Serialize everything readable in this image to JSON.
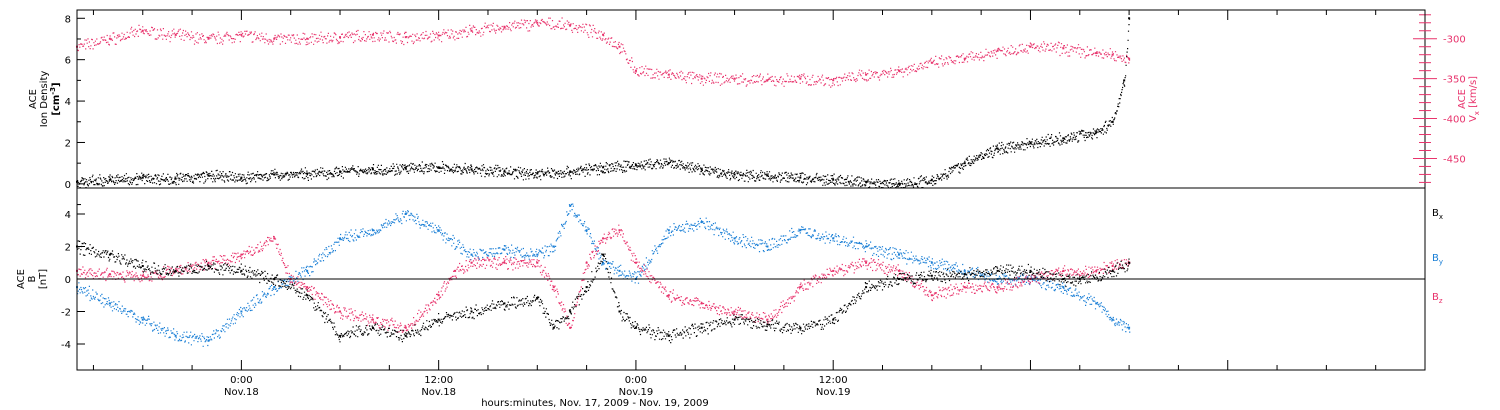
{
  "colors": {
    "density": "#000000",
    "velocity": "#e8336c",
    "bx": "#000000",
    "by": "#1a7fd6",
    "bz": "#e8336c"
  },
  "chart_data": [
    {
      "type": "scatter",
      "panel": "top",
      "ylabel": "ACE Ion Density [cm-3]",
      "ylabel_parts": {
        "line1": "ACE",
        "line2": "Ion Density",
        "unit_prefix": "[cm",
        "unit_sup": "-3",
        "unit_suffix": "]"
      },
      "ylim": [
        -0.2,
        8.4
      ],
      "yticks": [
        0,
        2,
        4,
        6,
        8
      ],
      "y2label": "ACE Vx [km/s]",
      "y2label_parts": {
        "line1": "ACE",
        "var": "V",
        "sub": "x",
        "unit": "[km/s]"
      },
      "y2lim": [
        -487,
        -264
      ],
      "y2ticks": [
        -300,
        -350,
        -400,
        -450
      ],
      "series": [
        {
          "key": "density",
          "points": [
            [
              -10,
              0.1
            ],
            [
              -8,
              0.2
            ],
            [
              -6,
              0.3
            ],
            [
              -4,
              0.25
            ],
            [
              -2,
              0.4
            ],
            [
              0,
              0.3
            ],
            [
              2,
              0.45
            ],
            [
              4,
              0.5
            ],
            [
              6,
              0.6
            ],
            [
              8,
              0.7
            ],
            [
              10,
              0.75
            ],
            [
              12,
              0.8
            ],
            [
              14,
              0.7
            ],
            [
              16,
              0.6
            ],
            [
              18,
              0.5
            ],
            [
              20,
              0.6
            ],
            [
              22,
              0.8
            ],
            [
              24,
              0.9
            ],
            [
              26,
              1.0
            ],
            [
              28,
              0.7
            ],
            [
              30,
              0.45
            ],
            [
              32,
              0.4
            ],
            [
              34,
              0.3
            ],
            [
              36,
              0.2
            ],
            [
              38,
              0.1
            ],
            [
              40,
              0.0
            ],
            [
              42,
              0.2
            ],
            [
              44,
              1.0
            ],
            [
              46,
              1.7
            ],
            [
              48,
              2.0
            ],
            [
              50,
              2.2
            ],
            [
              52,
              2.5
            ],
            [
              53,
              3.0
            ],
            [
              53.7,
              5.0
            ],
            [
              54,
              8.0
            ]
          ]
        },
        {
          "key": "velocity",
          "points": [
            [
              -10,
              -310
            ],
            [
              -8,
              -300
            ],
            [
              -6,
              -290
            ],
            [
              -4,
              -295
            ],
            [
              -2,
              -300
            ],
            [
              0,
              -295
            ],
            [
              2,
              -300
            ],
            [
              4,
              -300
            ],
            [
              6,
              -298
            ],
            [
              8,
              -295
            ],
            [
              10,
              -298
            ],
            [
              12,
              -296
            ],
            [
              14,
              -290
            ],
            [
              16,
              -285
            ],
            [
              18,
              -280
            ],
            [
              20,
              -283
            ],
            [
              22,
              -295
            ],
            [
              23,
              -310
            ],
            [
              24,
              -340
            ],
            [
              26,
              -345
            ],
            [
              28,
              -350
            ],
            [
              30,
              -350
            ],
            [
              32,
              -352
            ],
            [
              34,
              -350
            ],
            [
              36,
              -352
            ],
            [
              38,
              -345
            ],
            [
              40,
              -340
            ],
            [
              42,
              -330
            ],
            [
              44,
              -325
            ],
            [
              46,
              -315
            ],
            [
              48,
              -310
            ],
            [
              50,
              -312
            ],
            [
              52,
              -318
            ],
            [
              53,
              -320
            ],
            [
              54,
              -325
            ]
          ]
        }
      ]
    },
    {
      "type": "scatter",
      "panel": "bottom",
      "ylabel": "ACE B [nT]",
      "ylabel_parts": {
        "line1": "ACE",
        "var": "B",
        "unit": "[nT]"
      },
      "ylim": [
        -5.6,
        5.6
      ],
      "yticks": [
        -4,
        -2,
        0,
        2,
        4
      ],
      "xlabel": "hours:minutes, Nov. 17, 2009 - Nov. 19, 2009",
      "xlim": [
        -10,
        72
      ],
      "xticks": [
        {
          "x": 0,
          "time": "0:00",
          "date": "Nov.18"
        },
        {
          "x": 12,
          "time": "12:00",
          "date": "Nov.18"
        },
        {
          "x": 24,
          "time": "0:00",
          "date": "Nov.19"
        },
        {
          "x": 36,
          "time": "12:00",
          "date": "Nov.19"
        }
      ],
      "legend_placement": "right",
      "series": [
        {
          "key": "bx",
          "name_var": "B",
          "name_sub": "x",
          "points": [
            [
              -10,
              2.0
            ],
            [
              -8,
              1.5
            ],
            [
              -6,
              0.8
            ],
            [
              -4,
              0.5
            ],
            [
              -2,
              0.8
            ],
            [
              0,
              0.5
            ],
            [
              2,
              0.0
            ],
            [
              4,
              -1.0
            ],
            [
              6,
              -3.5
            ],
            [
              8,
              -3.0
            ],
            [
              10,
              -3.5
            ],
            [
              12,
              -2.5
            ],
            [
              14,
              -2.0
            ],
            [
              16,
              -1.5
            ],
            [
              18,
              -1.2
            ],
            [
              19,
              -3.0
            ],
            [
              20,
              -2.0
            ],
            [
              21,
              -0.5
            ],
            [
              22,
              1.5
            ],
            [
              23,
              -2.0
            ],
            [
              24,
              -3.0
            ],
            [
              26,
              -3.5
            ],
            [
              28,
              -3.0
            ],
            [
              30,
              -2.5
            ],
            [
              32,
              -2.8
            ],
            [
              34,
              -3.0
            ],
            [
              36,
              -2.5
            ],
            [
              38,
              -0.5
            ],
            [
              40,
              0.0
            ],
            [
              42,
              0.2
            ],
            [
              44,
              0.3
            ],
            [
              46,
              0.5
            ],
            [
              48,
              0.5
            ],
            [
              50,
              0.0
            ],
            [
              51,
              0.0
            ],
            [
              53,
              0.5
            ],
            [
              54,
              1.0
            ]
          ]
        },
        {
          "key": "by",
          "name_var": "B",
          "name_sub": "y",
          "points": [
            [
              -10,
              -0.5
            ],
            [
              -8,
              -1.5
            ],
            [
              -6,
              -2.5
            ],
            [
              -4,
              -3.5
            ],
            [
              -2,
              -3.8
            ],
            [
              0,
              -2.0
            ],
            [
              2,
              -0.5
            ],
            [
              4,
              0.5
            ],
            [
              6,
              2.5
            ],
            [
              8,
              3.0
            ],
            [
              10,
              4.0
            ],
            [
              12,
              3.0
            ],
            [
              14,
              1.5
            ],
            [
              16,
              1.8
            ],
            [
              18,
              1.5
            ],
            [
              19,
              2.0
            ],
            [
              20,
              4.5
            ],
            [
              21,
              3.0
            ],
            [
              22,
              1.0
            ],
            [
              23,
              0.5
            ],
            [
              24,
              0.0
            ],
            [
              26,
              3.0
            ],
            [
              28,
              3.5
            ],
            [
              30,
              2.5
            ],
            [
              32,
              2.0
            ],
            [
              34,
              3.0
            ],
            [
              36,
              2.5
            ],
            [
              38,
              2.0
            ],
            [
              40,
              1.5
            ],
            [
              42,
              1.0
            ],
            [
              44,
              0.5
            ],
            [
              46,
              0.0
            ],
            [
              48,
              0.0
            ],
            [
              50,
              -0.5
            ],
            [
              52,
              -1.5
            ],
            [
              53,
              -2.5
            ],
            [
              54,
              -3.0
            ]
          ]
        },
        {
          "key": "bz",
          "name_var": "B",
          "name_sub": "z",
          "points": [
            [
              -10,
              0.5
            ],
            [
              -8,
              0.3
            ],
            [
              -6,
              0.2
            ],
            [
              -4,
              0.5
            ],
            [
              -2,
              1.0
            ],
            [
              0,
              1.5
            ],
            [
              2,
              2.5
            ],
            [
              3,
              0.0
            ],
            [
              4,
              -0.5
            ],
            [
              6,
              -2.0
            ],
            [
              8,
              -2.5
            ],
            [
              10,
              -3.0
            ],
            [
              12,
              -1.0
            ],
            [
              13,
              0.5
            ],
            [
              14,
              1.0
            ],
            [
              16,
              1.0
            ],
            [
              18,
              1.0
            ],
            [
              19,
              -0.5
            ],
            [
              20,
              -3.0
            ],
            [
              21,
              1.0
            ],
            [
              22,
              2.5
            ],
            [
              23,
              3.0
            ],
            [
              24,
              1.0
            ],
            [
              26,
              -1.0
            ],
            [
              28,
              -1.5
            ],
            [
              30,
              -2.0
            ],
            [
              32,
              -2.5
            ],
            [
              34,
              -0.5
            ],
            [
              36,
              0.5
            ],
            [
              38,
              1.0
            ],
            [
              40,
              0.5
            ],
            [
              42,
              -1.0
            ],
            [
              44,
              -0.5
            ],
            [
              46,
              -0.5
            ],
            [
              48,
              0.0
            ],
            [
              50,
              0.5
            ],
            [
              52,
              0.5
            ],
            [
              53,
              0.8
            ],
            [
              54,
              1.0
            ]
          ]
        }
      ]
    }
  ]
}
